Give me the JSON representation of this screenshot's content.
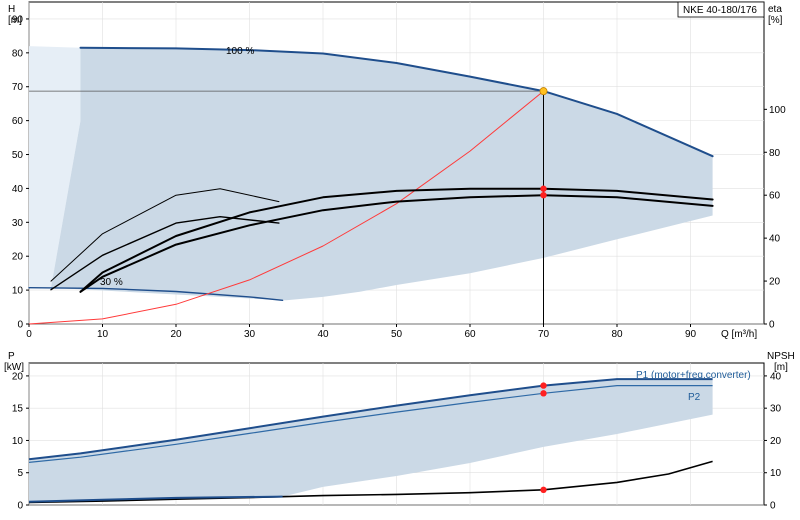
{
  "colors": {
    "envelope": "#cbd9e6",
    "envelope_light": "#e6eef6",
    "curve_blue": "#1f4e8c",
    "curve_blue_light": "#2f6aa6",
    "system_red": "#ff3a3a",
    "point_red": "#ff2020",
    "point_yellow": "#ffc020",
    "axis": "#000000"
  },
  "chart_data": [
    {
      "panel": "top",
      "type": "line",
      "title": "NKE 40-180/176",
      "xlabel": "Q [m³/h]",
      "ylabel_left": [
        "H",
        "[m]"
      ],
      "ylabel_right": [
        "eta",
        "[%]"
      ],
      "xlim": [
        0,
        100
      ],
      "ylim": [
        0,
        95
      ],
      "x_ticks": [
        0,
        10,
        20,
        30,
        40,
        50,
        60,
        70,
        80,
        90
      ],
      "y_ticks": [
        0,
        10,
        20,
        30,
        40,
        50,
        60,
        70,
        80,
        90
      ],
      "y2_ticks": [
        0,
        20,
        40,
        60,
        80,
        100
      ],
      "y2_range": [
        0,
        150
      ],
      "annotations": [
        "100 %",
        "30 %"
      ],
      "series": [
        {
          "role": "head-100",
          "x": [
            7,
            20,
            30,
            40,
            50,
            60,
            70,
            80,
            93
          ],
          "y": [
            81.5,
            81.3,
            80.8,
            79.8,
            77,
            73,
            68.7,
            62,
            49.5
          ]
        },
        {
          "role": "head-min",
          "x": [
            0,
            10,
            20,
            30,
            34.5
          ],
          "y": [
            10.7,
            10.5,
            9.6,
            8,
            7
          ]
        },
        {
          "role": "system",
          "x": [
            0,
            10,
            20,
            30,
            40,
            50,
            60,
            70
          ],
          "y": [
            0,
            1.5,
            5.8,
            13,
            23,
            35.5,
            51,
            68.7
          ]
        },
        {
          "role": "eta-p1",
          "x": [
            7,
            10,
            20,
            30,
            40,
            50,
            60,
            70,
            80,
            93
          ],
          "y2": [
            15,
            24,
            41,
            52,
            59,
            62,
            63,
            63,
            62,
            58
          ]
        },
        {
          "role": "eta-p2",
          "x": [
            7,
            10,
            20,
            30,
            40,
            50,
            60,
            70,
            80,
            93
          ],
          "y2": [
            15,
            22,
            37,
            46,
            53,
            57,
            59,
            60,
            59,
            55
          ]
        },
        {
          "role": "eta-min-p1",
          "x": [
            3,
            10,
            20,
            26,
            34
          ],
          "y2": [
            20,
            42,
            60,
            63,
            57
          ]
        },
        {
          "role": "eta-min-p2",
          "x": [
            3,
            10,
            20,
            26,
            34
          ],
          "y2": [
            16,
            32,
            47,
            50,
            47
          ]
        }
      ],
      "envelope": {
        "top_x": [
          7,
          20,
          30,
          40,
          50,
          60,
          70,
          80,
          93
        ],
        "top_y": [
          81.5,
          81.3,
          80.8,
          79.8,
          77,
          73,
          68.7,
          62,
          49.5
        ],
        "bottom_x": [
          93,
          80,
          70,
          60,
          50,
          45,
          40,
          35
        ],
        "bottom_y": [
          32,
          25,
          19.5,
          15,
          11.5,
          9.5,
          8,
          7
        ],
        "left_x": [
          3,
          2,
          0
        ],
        "left_y": [
          10.7,
          60,
          82
        ]
      },
      "duty_point": {
        "x": 70,
        "y": 68.7,
        "eta_p1": 63,
        "eta_p2": 60
      }
    },
    {
      "panel": "bottom",
      "type": "line",
      "ylabel_left": [
        "P",
        "[kW]"
      ],
      "ylabel_right": [
        "NPSH",
        "[m]"
      ],
      "xlim": [
        0,
        100
      ],
      "ylim": [
        0,
        22
      ],
      "y_ticks": [
        0,
        5,
        10,
        15,
        20
      ],
      "y2_ticks": [
        0,
        10,
        20,
        30,
        40
      ],
      "y2_range": [
        0,
        44
      ],
      "series": [
        {
          "name": "P1 (motor+freq.converter)",
          "x": [
            0,
            7,
            20,
            30,
            40,
            50,
            60,
            70,
            80,
            93
          ],
          "y": [
            7.1,
            8,
            10.1,
            11.9,
            13.7,
            15.4,
            17,
            18.5,
            19.5,
            19.5
          ]
        },
        {
          "name": "P2",
          "x": [
            0,
            7,
            20,
            30,
            40,
            50,
            60,
            70,
            80,
            93
          ],
          "y": [
            6.6,
            7.4,
            9.4,
            11.1,
            12.8,
            14.4,
            15.9,
            17.3,
            18.5,
            18.5
          ]
        },
        {
          "role": "npsh",
          "x": [
            0,
            10,
            20,
            30,
            40,
            50,
            60,
            70,
            80,
            87,
            93
          ],
          "y2": [
            0.8,
            1.2,
            1.8,
            2.3,
            2.9,
            3.3,
            3.8,
            4.7,
            7,
            9.6,
            13.5
          ]
        },
        {
          "role": "p-min",
          "x": [
            0,
            10,
            20,
            34.5
          ],
          "y": [
            0.5,
            0.8,
            1.1,
            1.3
          ]
        }
      ],
      "envelope": {
        "top_x": [
          0,
          7,
          20,
          30,
          40,
          50,
          60,
          70,
          80,
          93
        ],
        "top_y": [
          7.1,
          8,
          10.1,
          11.9,
          13.7,
          15.4,
          17,
          18.5,
          19.5,
          19.5
        ],
        "bottom_x": [
          93,
          80,
          70,
          60,
          50,
          40,
          34.5,
          20,
          10,
          0
        ],
        "bottom_y": [
          14,
          11,
          9,
          6.5,
          4.5,
          2.8,
          1.3,
          1.1,
          0.8,
          0.5
        ]
      },
      "duty_point": {
        "x": 70,
        "p1": 18.5,
        "p2": 17.3,
        "npsh": 4.7
      }
    }
  ]
}
